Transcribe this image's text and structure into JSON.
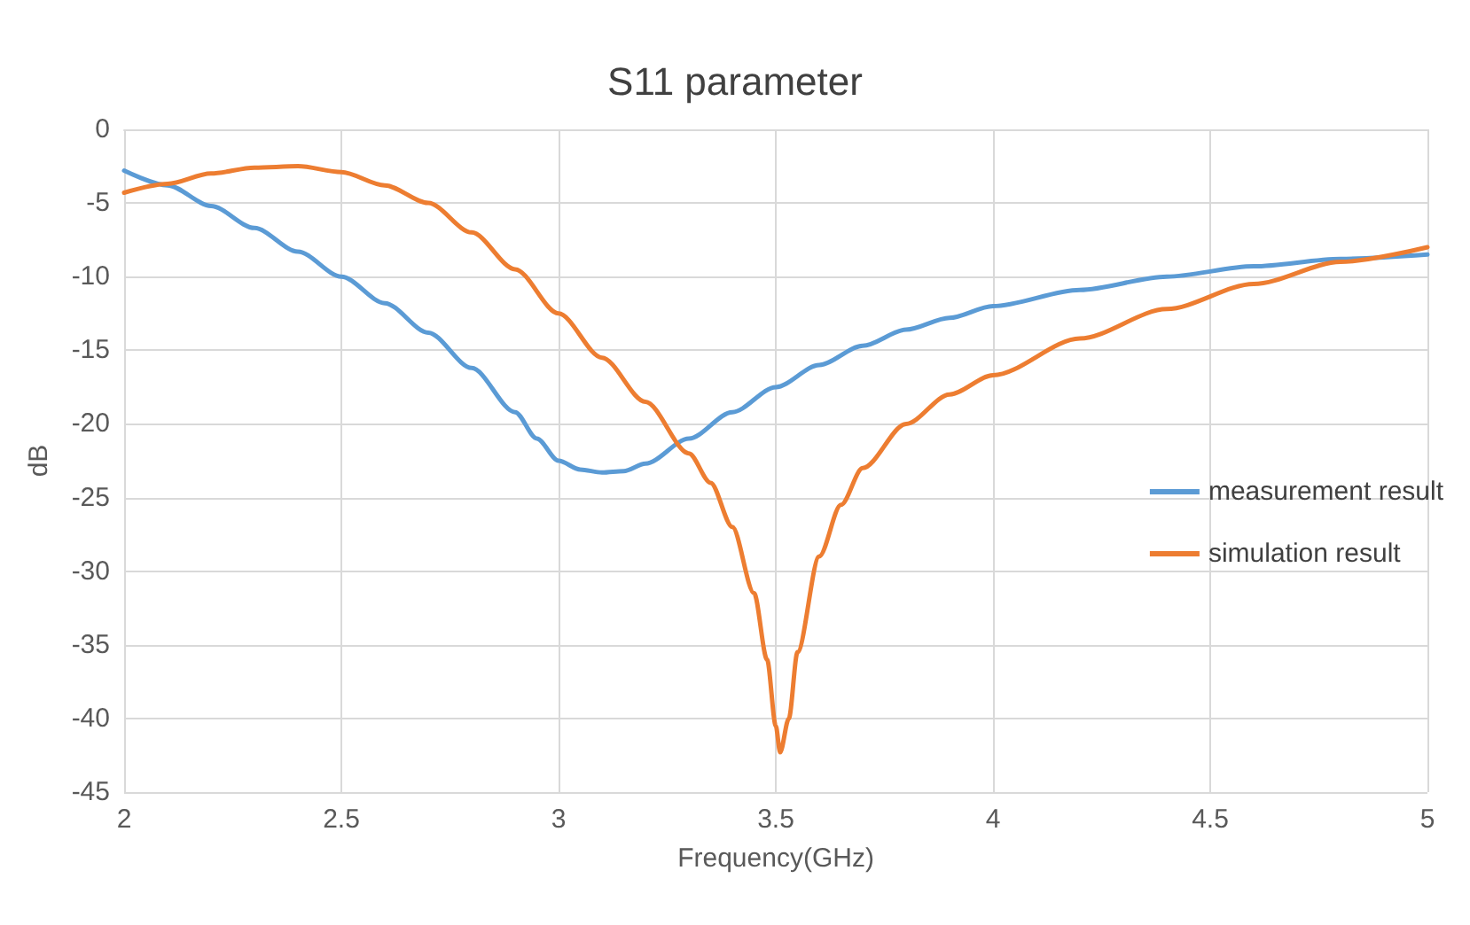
{
  "chart_data": {
    "type": "line",
    "title": "S11 parameter",
    "xlabel": "Frequency(GHz)",
    "ylabel": "dB",
    "xlim": [
      2,
      5
    ],
    "xticks": [
      2,
      2.5,
      3,
      3.5,
      4,
      4.5,
      5
    ],
    "ylim": [
      -45,
      0
    ],
    "yticks": [
      -45,
      -40,
      -35,
      -30,
      -25,
      -20,
      -15,
      -10,
      -5,
      0
    ],
    "grid": true,
    "legend": "right",
    "marker": "none",
    "line_style": "solid",
    "series": [
      {
        "name": "measurement result",
        "color": "#5b9bd5",
        "x": [
          2,
          2.1,
          2.2,
          2.3,
          2.4,
          2.5,
          2.6,
          2.7,
          2.8,
          2.9,
          2.95,
          3,
          3.05,
          3.1,
          3.15,
          3.2,
          3.3,
          3.4,
          3.5,
          3.6,
          3.7,
          3.8,
          3.9,
          4,
          4.2,
          4.4,
          4.6,
          4.8,
          5
        ],
        "values": [
          -2.8,
          -3.8,
          -5.2,
          -6.7,
          -8.3,
          -10,
          -11.8,
          -13.8,
          -16.2,
          -19.2,
          -21,
          -22.5,
          -23.1,
          -23.3,
          -23.2,
          -22.7,
          -21,
          -19.2,
          -17.5,
          -16,
          -14.7,
          -13.6,
          -12.8,
          -12,
          -10.9,
          -10,
          -9.3,
          -8.8,
          -8.5
        ]
      },
      {
        "name": "simulation result",
        "color": "#ed7d31",
        "x": [
          2,
          2.1,
          2.2,
          2.3,
          2.4,
          2.5,
          2.6,
          2.7,
          2.8,
          2.9,
          3,
          3.1,
          3.2,
          3.3,
          3.35,
          3.4,
          3.45,
          3.48,
          3.5,
          3.51,
          3.53,
          3.55,
          3.6,
          3.65,
          3.7,
          3.8,
          3.9,
          4,
          4.2,
          4.4,
          4.6,
          4.8,
          5
        ],
        "values": [
          -4.3,
          -3.7,
          -3,
          -2.6,
          -2.5,
          -2.9,
          -3.8,
          -5,
          -7,
          -9.5,
          -12.5,
          -15.5,
          -18.5,
          -22,
          -24,
          -27,
          -31.5,
          -36,
          -40.5,
          -42.3,
          -40,
          -35.5,
          -29,
          -25.5,
          -23,
          -20,
          -18,
          -16.7,
          -14.2,
          -12.2,
          -10.5,
          -9,
          -8
        ]
      }
    ]
  }
}
